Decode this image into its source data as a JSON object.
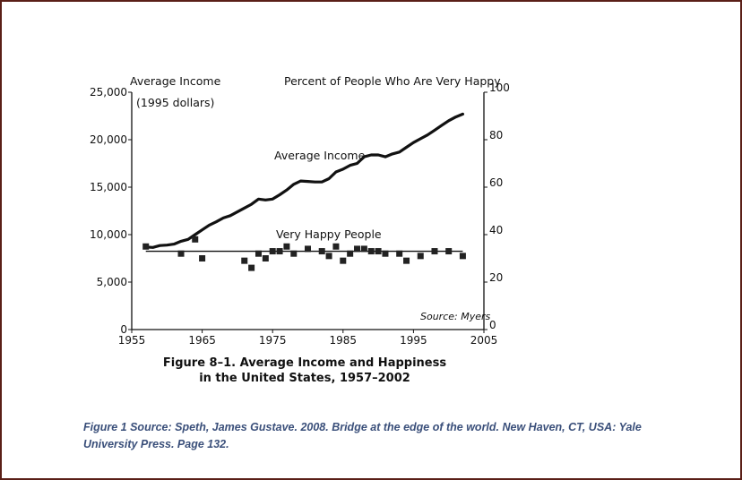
{
  "chart_data": {
    "type": "line",
    "left_axis_title": "Average Income",
    "left_axis_subtitle": "(1995 dollars)",
    "right_axis_title": "Percent of People Who Are Very Happy",
    "x_ticks": [
      "1955",
      "1965",
      "1975",
      "1985",
      "1995",
      "2005"
    ],
    "y_left_ticks": [
      "0",
      "5,000",
      "10,000",
      "15,000",
      "20,000",
      "25,000"
    ],
    "y_right_ticks": [
      "0",
      "20",
      "40",
      "60",
      "80",
      "100"
    ],
    "xlim": [
      1955,
      2005
    ],
    "ylim_left": [
      0,
      25000
    ],
    "ylim_right": [
      0,
      100
    ],
    "source": "Source: Myers",
    "series": [
      {
        "name": "Average Income",
        "axis": "left",
        "x": [
          1957,
          1958,
          1959,
          1960,
          1961,
          1962,
          1963,
          1964,
          1965,
          1966,
          1967,
          1968,
          1969,
          1970,
          1971,
          1972,
          1973,
          1974,
          1975,
          1976,
          1977,
          1978,
          1979,
          1980,
          1981,
          1982,
          1983,
          1984,
          1985,
          1986,
          1987,
          1988,
          1989,
          1990,
          1991,
          1992,
          1993,
          1994,
          1995,
          1996,
          1997,
          1998,
          1999,
          2000,
          2001,
          2002
        ],
        "values": [
          8700,
          8650,
          8850,
          8900,
          9000,
          9300,
          9500,
          10000,
          10500,
          11000,
          11350,
          11750,
          12000,
          12400,
          12800,
          13200,
          13750,
          13650,
          13750,
          14200,
          14700,
          15300,
          15650,
          15600,
          15550,
          15550,
          15900,
          16600,
          16900,
          17300,
          17500,
          18200,
          18400,
          18400,
          18200,
          18500,
          18700,
          19200,
          19700,
          20100,
          20500,
          21000,
          21500,
          22000,
          22400,
          22700
        ]
      },
      {
        "name": "Very Happy People",
        "axis": "right",
        "type": "scatter",
        "x": [
          1957,
          1962,
          1964,
          1965,
          1971,
          1972,
          1973,
          1974,
          1975,
          1976,
          1977,
          1978,
          1980,
          1982,
          1983,
          1984,
          1985,
          1986,
          1987,
          1988,
          1989,
          1990,
          1991,
          1993,
          1994,
          1996,
          1998,
          2000,
          2002
        ],
        "values": [
          35,
          32,
          38,
          30,
          29,
          26,
          32,
          30,
          33,
          33,
          35,
          32,
          34,
          33,
          31,
          35,
          29,
          32,
          34,
          34,
          33,
          33,
          32,
          32,
          29,
          31,
          33,
          33,
          31
        ]
      }
    ],
    "trend_line": {
      "axis": "right",
      "x": [
        1957,
        2002
      ],
      "values": [
        33,
        33
      ]
    }
  },
  "figure_title_line1": "Figure 8–1. Average Income and Happiness",
  "figure_title_line2": "in the United States, 1957–2002",
  "caption_line1": "Figure 1 Source: Speth, James Gustave. 2008. Bridge at the edge of the world. New Haven, CT, USA: Yale",
  "caption_line2": "University Press. Page 132."
}
